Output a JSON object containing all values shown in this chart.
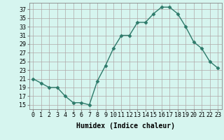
{
  "x": [
    0,
    1,
    2,
    3,
    4,
    5,
    6,
    7,
    8,
    9,
    10,
    11,
    12,
    13,
    14,
    15,
    16,
    17,
    18,
    19,
    20,
    21,
    22,
    23
  ],
  "y": [
    21,
    20,
    19,
    19,
    17,
    15.5,
    15.5,
    15,
    20.5,
    24,
    28,
    31,
    31,
    34,
    34,
    36,
    37.5,
    37.5,
    36,
    33,
    29.5,
    28,
    25,
    23.5
  ],
  "line_color": "#2d7a6a",
  "marker": "D",
  "marker_size": 2.5,
  "bg_color": "#d6f5ef",
  "grid_color": "#b0a8a8",
  "xlabel": "Humidex (Indice chaleur)",
  "yticks": [
    15,
    17,
    19,
    21,
    23,
    25,
    27,
    29,
    31,
    33,
    35,
    37
  ],
  "ylim": [
    14,
    38.5
  ],
  "xlim": [
    -0.5,
    23.5
  ],
  "xticks": [
    0,
    1,
    2,
    3,
    4,
    5,
    6,
    7,
    8,
    9,
    10,
    11,
    12,
    13,
    14,
    15,
    16,
    17,
    18,
    19,
    20,
    21,
    22,
    23
  ],
  "xlabel_fontsize": 7,
  "tick_fontsize": 6,
  "linewidth": 1.0
}
